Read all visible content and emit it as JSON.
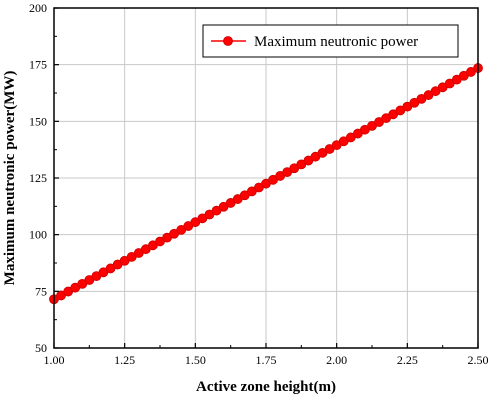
{
  "chart_data": {
    "type": "line",
    "xlabel": "Active zone height(m)",
    "ylabel": "Maximum neutronic power(MW)",
    "xlim": [
      1.0,
      2.5
    ],
    "ylim": [
      50,
      200
    ],
    "xticks": [
      "1.00",
      "1.25",
      "1.50",
      "1.75",
      "2.00",
      "2.25",
      "2.50"
    ],
    "yticks": [
      "50",
      "75",
      "100",
      "125",
      "150",
      "175",
      "200"
    ],
    "grid": true,
    "legend_position": "top-right",
    "series": [
      {
        "name": "Maximum neutronic power",
        "color": "#ff0000",
        "marker": "circle",
        "x": [
          1.0,
          1.025,
          1.05,
          1.075,
          1.1,
          1.125,
          1.15,
          1.175,
          1.2,
          1.225,
          1.25,
          1.275,
          1.3,
          1.325,
          1.35,
          1.375,
          1.4,
          1.425,
          1.45,
          1.475,
          1.5,
          1.525,
          1.55,
          1.575,
          1.6,
          1.625,
          1.65,
          1.675,
          1.7,
          1.725,
          1.75,
          1.775,
          1.8,
          1.825,
          1.85,
          1.875,
          1.9,
          1.925,
          1.95,
          1.975,
          2.0,
          2.025,
          2.05,
          2.075,
          2.1,
          2.125,
          2.15,
          2.175,
          2.2,
          2.225,
          2.25,
          2.275,
          2.3,
          2.325,
          2.35,
          2.375,
          2.4,
          2.425,
          2.45,
          2.475,
          2.5
        ],
        "y": [
          71.5,
          73.2,
          74.9,
          76.6,
          78.3,
          80.0,
          81.7,
          83.4,
          85.1,
          86.8,
          88.5,
          90.2,
          91.9,
          93.6,
          95.3,
          97.0,
          98.7,
          100.4,
          102.1,
          103.8,
          105.5,
          107.2,
          108.9,
          110.6,
          112.3,
          114.0,
          115.7,
          117.4,
          119.1,
          120.8,
          122.5,
          124.2,
          125.9,
          127.6,
          129.3,
          131.0,
          132.7,
          134.4,
          136.1,
          137.8,
          139.5,
          141.2,
          142.9,
          144.6,
          146.3,
          148.0,
          149.7,
          151.4,
          153.1,
          154.8,
          156.5,
          158.2,
          159.9,
          161.6,
          163.3,
          165.0,
          166.7,
          168.4,
          170.1,
          171.8,
          173.5
        ]
      }
    ]
  }
}
